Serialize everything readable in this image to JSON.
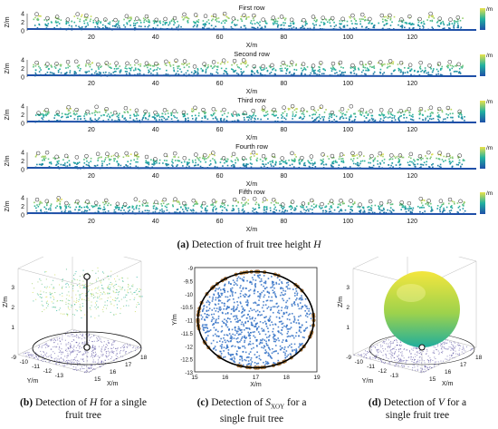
{
  "rows_panel": {
    "rows": [
      {
        "title": "First row",
        "ylabel": "Z/m",
        "xlabel": "X/m",
        "colorbar_label": "/m"
      },
      {
        "title": "Second row",
        "ylabel": "Z/m",
        "xlabel": "X/m",
        "colorbar_label": "/m"
      },
      {
        "title": "Third row",
        "ylabel": "Z/m",
        "xlabel": "X/m",
        "colorbar_label": "/m"
      },
      {
        "title": "Fourth row",
        "ylabel": "Z/m",
        "xlabel": "X/m",
        "colorbar_label": "/m"
      },
      {
        "title": "Fifth row",
        "ylabel": "Z/m",
        "xlabel": "X/m",
        "colorbar_label": "/m"
      }
    ],
    "caption": {
      "tag": "(a)",
      "text": "Detection of fruit tree height",
      "symbol": "H"
    }
  },
  "bottom_panels": [
    {
      "id": "b",
      "caption": {
        "tag": "(b)",
        "line1": "Detection of",
        "symbol": "H",
        "line1b": "for a single",
        "line2": "fruit tree"
      },
      "axes": {
        "z_label": "Z/m",
        "x_label": "X/m",
        "y_label": "Y/m",
        "z_ticks": [
          "1",
          "2",
          "3"
        ],
        "y_ticks": [
          "-9",
          "-10",
          "-11",
          "-12",
          "-13"
        ],
        "x_ticks": [
          "15",
          "16",
          "17",
          "18"
        ]
      }
    },
    {
      "id": "c",
      "caption": {
        "tag": "(c)",
        "line1": "Detection of",
        "symbol": "S",
        "sub": "XOY",
        "line1b": "for a",
        "line2": "single fruit tree"
      },
      "axes": {
        "x_label": "X/m",
        "y_label": "Y/m",
        "x_ticks": [
          "15",
          "16",
          "17",
          "18",
          "19"
        ],
        "y_ticks": [
          "-9",
          "-9.5",
          "-10",
          "-10.5",
          "-11",
          "-11.5",
          "-12",
          "-12.5",
          "-13"
        ]
      }
    },
    {
      "id": "d",
      "caption": {
        "tag": "(d)",
        "line1": "Detection of",
        "symbol": "V",
        "line1b": "for a",
        "line2": "single fruit tree"
      },
      "axes": {
        "z_label": "Z/m",
        "x_label": "X/m",
        "y_label": "Y/m",
        "z_ticks": [
          "1",
          "2",
          "3"
        ],
        "y_ticks": [
          "-9",
          "-10",
          "-11",
          "-12",
          "-13"
        ],
        "x_ticks": [
          "15",
          "16",
          "17",
          "18"
        ]
      }
    }
  ],
  "colors": {
    "low": "#1f4fa8",
    "mid": "#21b1a0",
    "high": "#e9e24a",
    "marker": "#222222",
    "circle_c": "#000000",
    "sphere_top": "#f4e63e",
    "sphere_bottom": "#1fae9d"
  },
  "chart_data": [
    {
      "type": "scatter",
      "title": "First row",
      "xlabel": "X/m",
      "ylabel": "Z/m",
      "xlim": [
        0,
        140
      ],
      "ylim": [
        0,
        4
      ],
      "x_ticks": [
        20,
        40,
        60,
        80,
        100,
        120
      ],
      "y_ticks": [
        0,
        2,
        4
      ],
      "colorbar_label": "/m"
    },
    {
      "type": "scatter",
      "title": "Second row",
      "xlabel": "X/m",
      "ylabel": "Z/m",
      "xlim": [
        0,
        140
      ],
      "ylim": [
        0,
        4
      ],
      "x_ticks": [
        20,
        40,
        60,
        80,
        100,
        120
      ],
      "y_ticks": [
        0,
        2,
        4
      ],
      "colorbar_label": "/m"
    },
    {
      "type": "scatter",
      "title": "Third row",
      "xlabel": "X/m",
      "ylabel": "Z/m",
      "xlim": [
        0,
        140
      ],
      "ylim": [
        0,
        4
      ],
      "x_ticks": [
        20,
        40,
        60,
        80,
        100,
        120
      ],
      "y_ticks": [
        0,
        2,
        4
      ],
      "colorbar_label": "/m"
    },
    {
      "type": "scatter",
      "title": "Fourth row",
      "xlabel": "X/m",
      "ylabel": "Z/m",
      "xlim": [
        0,
        140
      ],
      "ylim": [
        0,
        4
      ],
      "x_ticks": [
        20,
        40,
        60,
        80,
        100,
        120
      ],
      "y_ticks": [
        0,
        2,
        4
      ],
      "colorbar_label": "/m"
    },
    {
      "type": "scatter",
      "title": "Fifth row",
      "xlabel": "X/m",
      "ylabel": "Z/m",
      "xlim": [
        0,
        140
      ],
      "ylim": [
        0,
        4
      ],
      "x_ticks": [
        20,
        40,
        60,
        80,
        100,
        120
      ],
      "y_ticks": [
        0,
        2,
        4
      ],
      "colorbar_label": "/m"
    }
  ]
}
